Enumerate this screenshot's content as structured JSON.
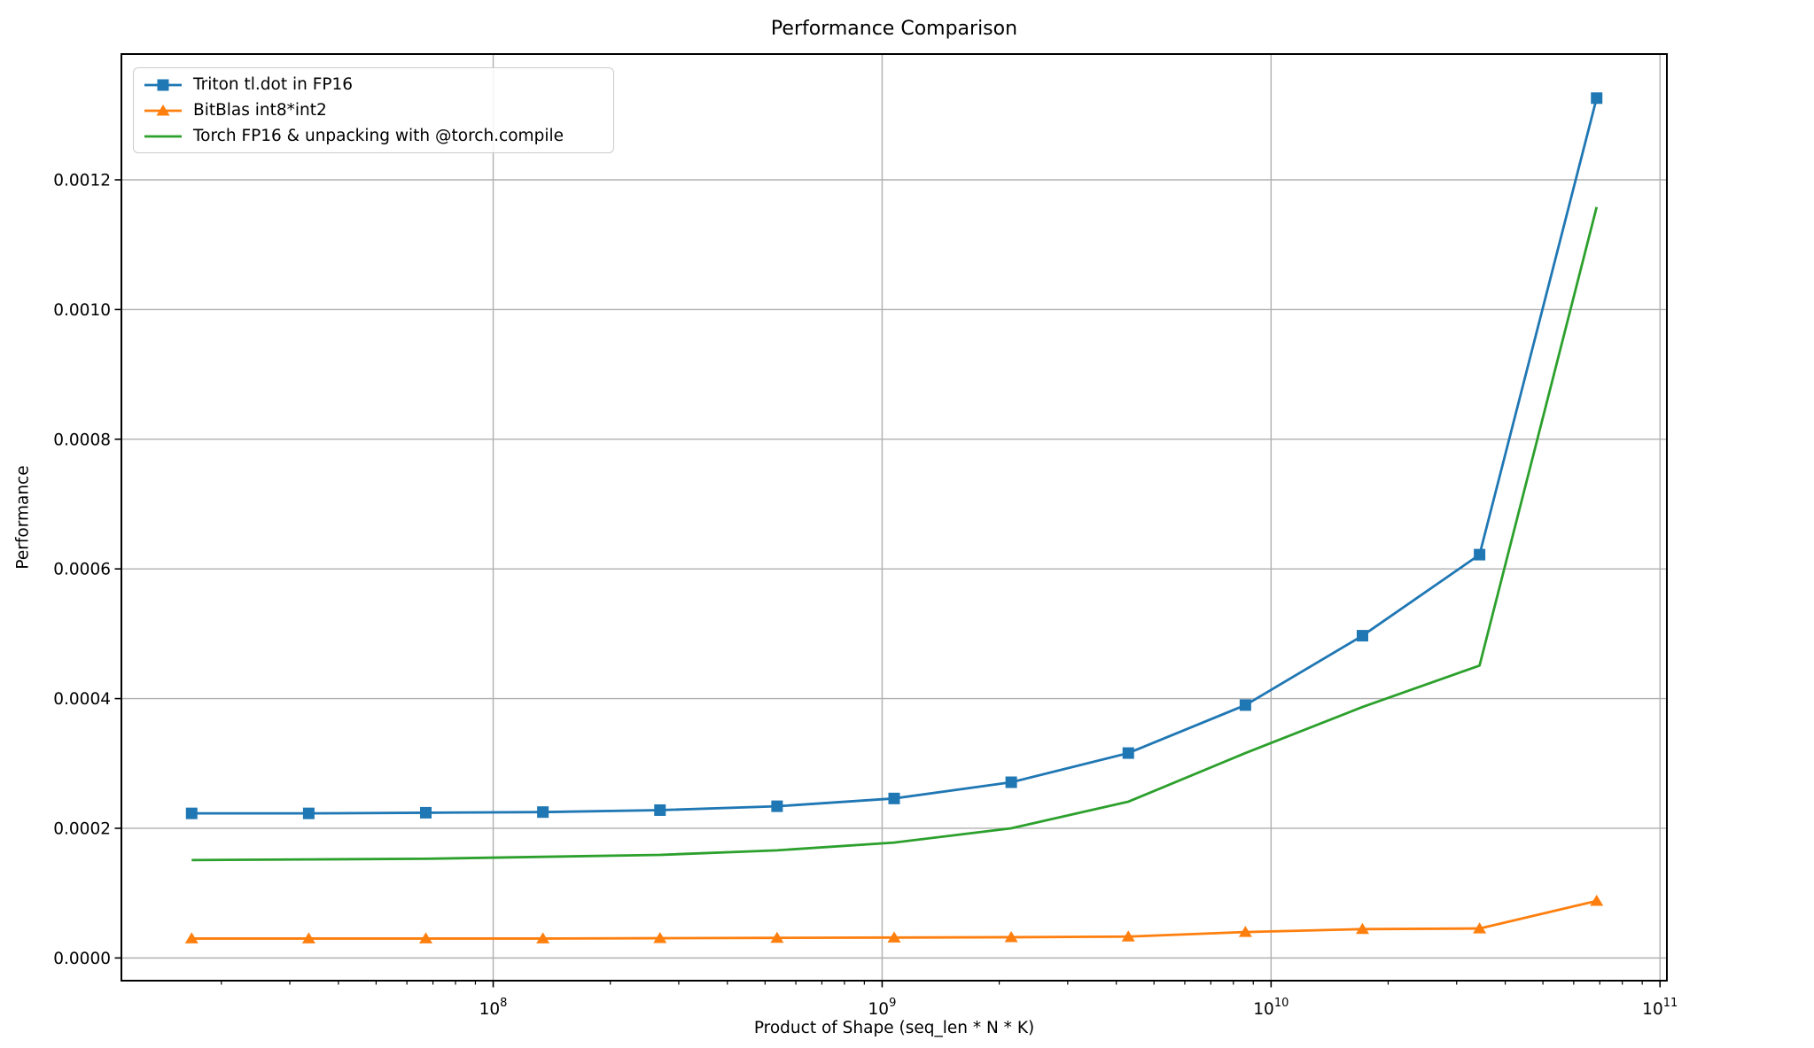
{
  "figure": {
    "background": "#ffffff",
    "grid_color": "#b0b0b0",
    "spine_color": "#000000"
  },
  "chart_data": {
    "type": "line",
    "title": "Performance Comparison",
    "xlabel": "Product of Shape (seq_len * N * K)",
    "ylabel": "Performance",
    "x_scale": "log",
    "y_scale": "linear",
    "grid": true,
    "legend_position": "upper left",
    "xlim_log10": [
      7.0441,
      11.0177
    ],
    "ylim": [
      -3.5e-05,
      0.001394
    ],
    "x_ticks": [
      100000000,
      1000000000,
      10000000000,
      100000000000
    ],
    "x_tick_exponents": [
      8,
      9,
      10,
      11
    ],
    "y_ticks": [
      0,
      0.0002,
      0.0004,
      0.0006,
      0.0008,
      0.001,
      0.0012
    ],
    "y_tick_labels": [
      "0.0000",
      "0.0002",
      "0.0004",
      "0.0006",
      "0.0008",
      "0.0010",
      "0.0012"
    ],
    "x": [
      16777216,
      33554432,
      67108864,
      134217728,
      268435456,
      536870912,
      1073741824,
      2147483648,
      4294967296,
      8589934592,
      17179869184,
      34359738368,
      68719476736
    ],
    "series": [
      {
        "name": "Triton tl.dot in FP16",
        "color": "#1f77b4",
        "marker": "square",
        "values": [
          0.000223,
          0.000223,
          0.000224,
          0.000225,
          0.000228,
          0.000234,
          0.000246,
          0.000271,
          0.000316,
          0.00039,
          0.000497,
          0.000622,
          0.001326
        ]
      },
      {
        "name": "BitBlas int8*int2",
        "color": "#ff7f0e",
        "marker": "triangle",
        "values": [
          3e-05,
          3e-05,
          3e-05,
          3e-05,
          3.05e-05,
          3.1e-05,
          3.15e-05,
          3.2e-05,
          3.3e-05,
          4e-05,
          4.45e-05,
          4.55e-05,
          8.8e-05
        ]
      },
      {
        "name": "Torch FP16 & unpacking with @torch.compile",
        "color": "#2ca02c",
        "marker": "none",
        "values": [
          0.000151,
          0.000152,
          0.000153,
          0.000156,
          0.000159,
          0.000166,
          0.000178,
          0.0002,
          0.000241,
          0.000316,
          0.000387,
          0.000451,
          0.001158
        ]
      }
    ]
  }
}
